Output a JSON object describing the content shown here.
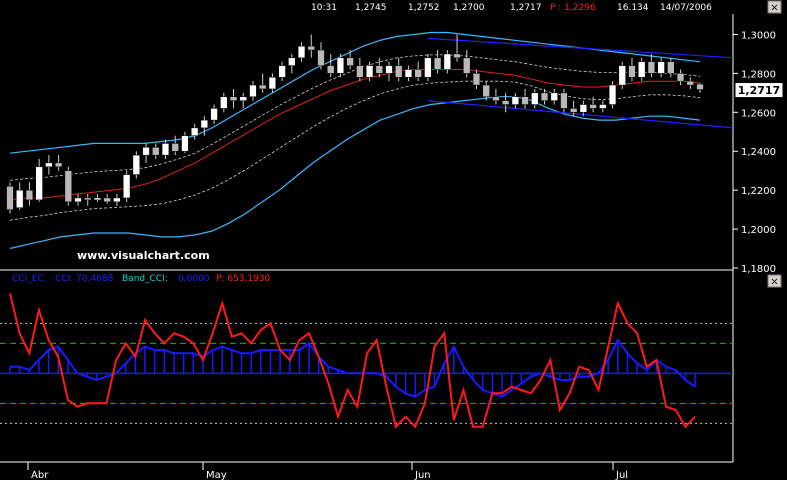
{
  "header": {
    "time": "10:31",
    "open": "1,2745",
    "high": "1,2752",
    "low": "1,2700",
    "close": "1,2717",
    "p_label": "P : 1,2296",
    "volume": "16.134",
    "date": "14/07/2006"
  },
  "watermark": "www.visualchart.com",
  "indicator_legend": {
    "cci_ec": "CCI_EC",
    "cci": "CCI: 70,4088",
    "band": "Band_CCI:",
    "band_value": "0,0000",
    "p": "P: 653,1930"
  },
  "colors": {
    "background": "#000000",
    "bollinger": "#3ab8ff",
    "trend_channel": "#2020ff",
    "ma_red": "#e02020",
    "dashed": "#d0d0d0",
    "candle_up": "#ffffff",
    "candle_down": "#b8b8b8",
    "cci_hist": "#1a1aff",
    "cci_line": "#ff1a1a",
    "grid_green": "#00c000",
    "grid_white": "#bfbfbf",
    "legend_blue": "#2020ff",
    "legend_cyan": "#20d0d0"
  },
  "chart_data": [
    {
      "type": "candlestick",
      "title": "",
      "x_labels": [
        "Abr",
        "May",
        "Jun",
        "Jul"
      ],
      "y_ticks": [
        "1,3000",
        "1,2800",
        "1,2600",
        "1,2400",
        "1,2200",
        "1,2000",
        "1,1800"
      ],
      "y_tick_values": [
        1.3,
        1.28,
        1.26,
        1.24,
        1.22,
        1.2,
        1.18
      ],
      "ylim": [
        1.18,
        1.31
      ],
      "last_price": "1,2717",
      "candles": [
        [
          1.222,
          1.224,
          1.208,
          1.21
        ],
        [
          1.211,
          1.224,
          1.21,
          1.22
        ],
        [
          1.22,
          1.224,
          1.212,
          1.215
        ],
        [
          1.215,
          1.236,
          1.214,
          1.232
        ],
        [
          1.232,
          1.238,
          1.228,
          1.234
        ],
        [
          1.234,
          1.238,
          1.23,
          1.232
        ],
        [
          1.23,
          1.232,
          1.212,
          1.214
        ],
        [
          1.214,
          1.218,
          1.212,
          1.216
        ],
        [
          1.216,
          1.218,
          1.212,
          1.215
        ],
        [
          1.215,
          1.218,
          1.214,
          1.216
        ],
        [
          1.216,
          1.218,
          1.213,
          1.214
        ],
        [
          1.214,
          1.218,
          1.212,
          1.216
        ],
        [
          1.216,
          1.23,
          1.214,
          1.228
        ],
        [
          1.228,
          1.24,
          1.226,
          1.238
        ],
        [
          1.238,
          1.244,
          1.234,
          1.242
        ],
        [
          1.242,
          1.244,
          1.236,
          1.238
        ],
        [
          1.238,
          1.246,
          1.236,
          1.244
        ],
        [
          1.244,
          1.248,
          1.238,
          1.24
        ],
        [
          1.24,
          1.25,
          1.239,
          1.248
        ],
        [
          1.248,
          1.254,
          1.246,
          1.252
        ],
        [
          1.252,
          1.258,
          1.248,
          1.256
        ],
        [
          1.256,
          1.264,
          1.254,
          1.262
        ],
        [
          1.262,
          1.27,
          1.26,
          1.268
        ],
        [
          1.268,
          1.272,
          1.262,
          1.266
        ],
        [
          1.266,
          1.27,
          1.262,
          1.268
        ],
        [
          1.268,
          1.276,
          1.266,
          1.274
        ],
        [
          1.274,
          1.28,
          1.27,
          1.272
        ],
        [
          1.272,
          1.28,
          1.27,
          1.278
        ],
        [
          1.278,
          1.286,
          1.276,
          1.284
        ],
        [
          1.284,
          1.29,
          1.28,
          1.288
        ],
        [
          1.288,
          1.296,
          1.286,
          1.294
        ],
        [
          1.294,
          1.3,
          1.288,
          1.292
        ],
        [
          1.292,
          1.296,
          1.282,
          1.284
        ],
        [
          1.284,
          1.29,
          1.278,
          1.28
        ],
        [
          1.28,
          1.29,
          1.278,
          1.288
        ],
        [
          1.288,
          1.292,
          1.282,
          1.284
        ],
        [
          1.284,
          1.288,
          1.276,
          1.278
        ],
        [
          1.278,
          1.286,
          1.276,
          1.284
        ],
        [
          1.284,
          1.288,
          1.278,
          1.28
        ],
        [
          1.28,
          1.286,
          1.276,
          1.284
        ],
        [
          1.284,
          1.288,
          1.276,
          1.278
        ],
        [
          1.278,
          1.284,
          1.276,
          1.282
        ],
        [
          1.282,
          1.286,
          1.276,
          1.278
        ],
        [
          1.278,
          1.29,
          1.276,
          1.288
        ],
        [
          1.288,
          1.292,
          1.28,
          1.282
        ],
        [
          1.282,
          1.292,
          1.28,
          1.29
        ],
        [
          1.29,
          1.3,
          1.286,
          1.288
        ],
        [
          1.288,
          1.292,
          1.278,
          1.28
        ],
        [
          1.28,
          1.282,
          1.272,
          1.274
        ],
        [
          1.274,
          1.276,
          1.266,
          1.268
        ],
        [
          1.268,
          1.272,
          1.264,
          1.266
        ],
        [
          1.266,
          1.27,
          1.26,
          1.264
        ],
        [
          1.264,
          1.27,
          1.262,
          1.268
        ],
        [
          1.268,
          1.272,
          1.262,
          1.264
        ],
        [
          1.264,
          1.272,
          1.262,
          1.27
        ],
        [
          1.27,
          1.272,
          1.264,
          1.266
        ],
        [
          1.266,
          1.272,
          1.264,
          1.27
        ],
        [
          1.27,
          1.272,
          1.26,
          1.262
        ],
        [
          1.262,
          1.266,
          1.258,
          1.26
        ],
        [
          1.26,
          1.266,
          1.258,
          1.264
        ],
        [
          1.264,
          1.268,
          1.26,
          1.262
        ],
        [
          1.262,
          1.266,
          1.26,
          1.264
        ],
        [
          1.264,
          1.276,
          1.262,
          1.274
        ],
        [
          1.274,
          1.286,
          1.272,
          1.284
        ],
        [
          1.284,
          1.288,
          1.276,
          1.278
        ],
        [
          1.278,
          1.288,
          1.276,
          1.286
        ],
        [
          1.286,
          1.29,
          1.278,
          1.28
        ],
        [
          1.28,
          1.288,
          1.278,
          1.286
        ],
        [
          1.286,
          1.288,
          1.278,
          1.28
        ],
        [
          1.28,
          1.282,
          1.274,
          1.276
        ],
        [
          1.276,
          1.278,
          1.272,
          1.274
        ],
        [
          1.2745,
          1.2752,
          1.27,
          1.2717
        ]
      ],
      "bollinger_upper": [
        1.239,
        1.24,
        1.241,
        1.242,
        1.243,
        1.244,
        1.244,
        1.244,
        1.244,
        1.245,
        1.246,
        1.248,
        1.252,
        1.257,
        1.262,
        1.267,
        1.272,
        1.277,
        1.282,
        1.286,
        1.29,
        1.294,
        1.297,
        1.299,
        1.3,
        1.301,
        1.301,
        1.3,
        1.299,
        1.298,
        1.297,
        1.296,
        1.295,
        1.294,
        1.293,
        1.292,
        1.291,
        1.29,
        1.289,
        1.288,
        1.287,
        1.286
      ],
      "bollinger_lower": [
        1.19,
        1.192,
        1.194,
        1.196,
        1.197,
        1.198,
        1.198,
        1.198,
        1.197,
        1.196,
        1.196,
        1.197,
        1.199,
        1.203,
        1.208,
        1.214,
        1.22,
        1.227,
        1.234,
        1.24,
        1.246,
        1.251,
        1.256,
        1.259,
        1.262,
        1.264,
        1.265,
        1.266,
        1.267,
        1.268,
        1.268,
        1.266,
        1.262,
        1.259,
        1.257,
        1.256,
        1.256,
        1.257,
        1.258,
        1.258,
        1.257,
        1.256
      ],
      "moving_average": [
        1.215,
        1.216,
        1.216,
        1.217,
        1.218,
        1.219,
        1.22,
        1.221,
        1.223,
        1.226,
        1.23,
        1.234,
        1.239,
        1.244,
        1.249,
        1.254,
        1.259,
        1.263,
        1.267,
        1.271,
        1.274,
        1.277,
        1.279,
        1.281,
        1.282,
        1.282,
        1.282,
        1.282,
        1.281,
        1.28,
        1.279,
        1.277,
        1.275,
        1.274,
        1.273,
        1.273,
        1.274,
        1.275,
        1.276,
        1.276,
        1.276,
        1.275
      ],
      "trend_channel_upper": [
        [
          1.298,
          1.288
        ]
      ],
      "trend_channel_lower": [
        [
          1.266,
          1.252
        ]
      ]
    },
    {
      "type": "bar+line",
      "title": "CCI_EC",
      "series": [
        {
          "name": "CCI",
          "type": "bar",
          "values": [
            0.2,
            0.2,
            0.1,
            0.4,
            0.7,
            0.8,
            0.4,
            0.0,
            -0.1,
            -0.2,
            -0.1,
            0.0,
            0.3,
            0.6,
            0.8,
            0.7,
            0.7,
            0.6,
            0.6,
            0.6,
            0.5,
            0.7,
            0.8,
            0.7,
            0.6,
            0.6,
            0.7,
            0.7,
            0.7,
            0.7,
            0.7,
            0.9,
            0.5,
            0.2,
            0.1,
            0.0,
            0.0,
            0.0,
            0.0,
            -0.1,
            -0.4,
            -0.6,
            -0.7,
            -0.5,
            -0.4,
            0.3,
            0.8,
            0.2,
            -0.2,
            -0.5,
            -0.6,
            -0.7,
            -0.5,
            -0.3,
            -0.1,
            0.0,
            -0.1,
            -0.2,
            -0.2,
            -0.1,
            -0.1,
            0.0,
            0.4,
            1.0,
            0.6,
            0.3,
            0.1,
            0.4,
            0.2,
            0.1,
            -0.2,
            -0.4
          ]
        },
        {
          "name": "Band_CCI",
          "type": "line",
          "values": [
            2.4,
            1.2,
            0.6,
            1.9,
            1.0,
            0.5,
            -0.8,
            -1.0,
            -0.9,
            -0.9,
            -0.9,
            0.4,
            0.9,
            0.5,
            1.6,
            1.2,
            0.9,
            1.2,
            1.1,
            0.9,
            0.4,
            1.2,
            2.1,
            1.1,
            1.2,
            0.9,
            1.3,
            1.5,
            0.7,
            0.4,
            1.0,
            1.2,
            0.5,
            -0.3,
            -1.3,
            -0.5,
            -1.0,
            0.6,
            1.0,
            -0.4,
            -1.6,
            -1.3,
            -1.6,
            -0.9,
            0.8,
            1.2,
            -1.4,
            -0.5,
            -1.6,
            -1.6,
            -0.6,
            -0.6,
            -0.4,
            -0.5,
            -0.6,
            -0.2,
            0.4,
            -1.1,
            -0.6,
            0.2,
            0.1,
            -0.5,
            0.8,
            2.1,
            1.5,
            1.2,
            0.2,
            0.4,
            -1.0,
            -1.1,
            -1.6,
            -1.3
          ]
        }
      ],
      "ylim": [
        -2.0,
        2.5
      ],
      "reference_lines": [
        1.5,
        0.9,
        0.0,
        -0.9,
        -1.5
      ]
    }
  ]
}
